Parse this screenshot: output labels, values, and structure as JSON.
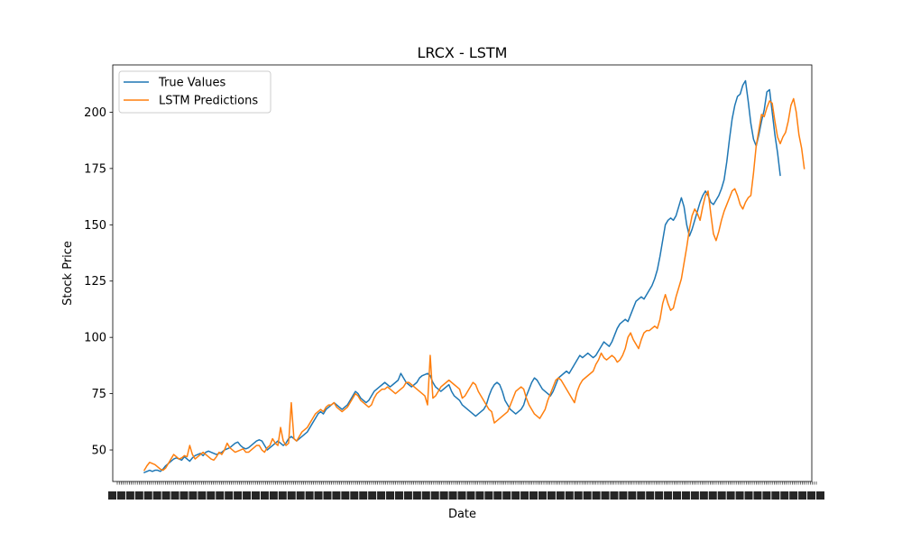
{
  "chart_data": {
    "type": "line",
    "title": "LRCX - LSTM",
    "xlabel": "Date",
    "ylabel": "Stock Price",
    "ylim": [
      36,
      221
    ],
    "yticks": [
      50,
      75,
      100,
      125,
      150,
      175,
      200
    ],
    "ytick_labels": [
      "50",
      "75",
      "100",
      "125",
      "150",
      "175",
      "200"
    ],
    "grid": false,
    "legend": "top-left",
    "x_tick_note": "x-axis tick labels are dense overlapping date strings and are not legible",
    "series": [
      {
        "name": "True Values",
        "color": "#1f77b4",
        "values": [
          40,
          40.5,
          41,
          40.5,
          41,
          41,
          40.5,
          41.5,
          43,
          44,
          45,
          46,
          46.5,
          46,
          45.5,
          47,
          46,
          45,
          46.5,
          47.5,
          48,
          48.5,
          47.5,
          49,
          49.5,
          49,
          48.5,
          48,
          48.5,
          49,
          50,
          50.5,
          51,
          52,
          53,
          53.5,
          52,
          51,
          50.5,
          51,
          52,
          53,
          54,
          54.5,
          54,
          52,
          50,
          51,
          52,
          53,
          54,
          53,
          52,
          53,
          55,
          56,
          55,
          54,
          55,
          56,
          57,
          58,
          60,
          62,
          64,
          66,
          67,
          66,
          68,
          69,
          70,
          71,
          70,
          69,
          68,
          69,
          70,
          72,
          74,
          76,
          75,
          73,
          72,
          71,
          72,
          74,
          76,
          77,
          78,
          79,
          80,
          79,
          78,
          79,
          80,
          81,
          84,
          82,
          80,
          79,
          78,
          79,
          80,
          82,
          83,
          83.5,
          84,
          83,
          80,
          78,
          77,
          76,
          77,
          78,
          79,
          76,
          74,
          73,
          72,
          70,
          69,
          68,
          67,
          66,
          65,
          66,
          67,
          68,
          70,
          74,
          77,
          79,
          80,
          79,
          76,
          72,
          70,
          68,
          67,
          66,
          67,
          68,
          70,
          74,
          77,
          80,
          82,
          81,
          79,
          77,
          76,
          75,
          74,
          76,
          79,
          82,
          83,
          84,
          85,
          84,
          86,
          88,
          90,
          92,
          91,
          92,
          93,
          92,
          91,
          92,
          94,
          96,
          98,
          97,
          96,
          98,
          101,
          104,
          106,
          107,
          108,
          107,
          110,
          113,
          116,
          117,
          118,
          117,
          119,
          121,
          123,
          126,
          130,
          136,
          143,
          150,
          152,
          153,
          152,
          154,
          158,
          162,
          158,
          150,
          145,
          148,
          152,
          156,
          160,
          163,
          165,
          163,
          160,
          159,
          161,
          163,
          166,
          170,
          178,
          188,
          197,
          203,
          207,
          208,
          212,
          214,
          205,
          195,
          188,
          185,
          190,
          196,
          201,
          209,
          210,
          200,
          190,
          182,
          172
        ]
      },
      {
        "name": "LSTM Predictions",
        "color": "#ff7f0e",
        "values": [
          41,
          43,
          44.5,
          44,
          43.5,
          42.5,
          41.5,
          41,
          42,
          44,
          46,
          48,
          47,
          46,
          46.5,
          47.5,
          47,
          52,
          48,
          46,
          47,
          48,
          49,
          48,
          47,
          46,
          45.5,
          47,
          49,
          48,
          50,
          53,
          51,
          50,
          49,
          49.5,
          50,
          50.5,
          49,
          49,
          50,
          51,
          52,
          52,
          50,
          49,
          51,
          52,
          55,
          53,
          52,
          60,
          54,
          52,
          53,
          71,
          55,
          54,
          56,
          58,
          59,
          60,
          62,
          64,
          66,
          67,
          68,
          67,
          69,
          70,
          70,
          71,
          69,
          68,
          67,
          68,
          69,
          71,
          73,
          75,
          74,
          72,
          71,
          70,
          69,
          70,
          73,
          75,
          76,
          77,
          77,
          78,
          77,
          76,
          75,
          76,
          77,
          78,
          80,
          80,
          79,
          78,
          77,
          76,
          75,
          74,
          70,
          92,
          73,
          74,
          76,
          78,
          79,
          80,
          81,
          80,
          79,
          78,
          77,
          73,
          74,
          76,
          78,
          80,
          79,
          76,
          74,
          72,
          70,
          68,
          67,
          62,
          63,
          64,
          65,
          66,
          67,
          70,
          73,
          76,
          77,
          78,
          77,
          73,
          70,
          68,
          66,
          65,
          64,
          66,
          68,
          72,
          75,
          78,
          81,
          82,
          81,
          79,
          77,
          75,
          73,
          71,
          76,
          79,
          81,
          82,
          83,
          84,
          85,
          88,
          90,
          93,
          91,
          90,
          91,
          92,
          91,
          89,
          90,
          92,
          95,
          100,
          102,
          99,
          97,
          95,
          99,
          102,
          103,
          103,
          104,
          105,
          104,
          108,
          115,
          119,
          115,
          112,
          113,
          118,
          122,
          126,
          133,
          140,
          148,
          154,
          157,
          155,
          152,
          158,
          163,
          165,
          155,
          146,
          143,
          147,
          152,
          156,
          159,
          162,
          165,
          166,
          163,
          159,
          157,
          160,
          162,
          163,
          173,
          185,
          192,
          199,
          198,
          202,
          205,
          204,
          196,
          189,
          186,
          189,
          191,
          196,
          203,
          206,
          200,
          190,
          184,
          175
        ]
      }
    ]
  }
}
